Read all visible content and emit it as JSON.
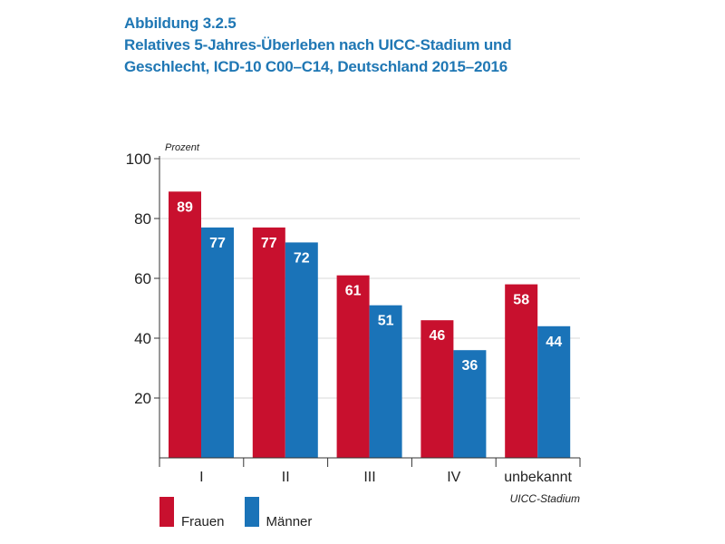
{
  "header": {
    "figure_label": "Abbildung 3.2.5",
    "title_line1": "Relatives 5-Jahres-Überleben nach UICC-Stadium und",
    "title_line2": "Geschlecht, ICD-10 C00–C14, Deutschland 2015–2016"
  },
  "colors": {
    "frauen": "#c8102e",
    "maenner": "#1a73b8",
    "title": "#1f77b4"
  },
  "chart_data": {
    "type": "bar",
    "ylabel": "Prozent",
    "xlabel": "UICC-Stadium",
    "ylim": [
      0,
      100
    ],
    "yticks": [
      20,
      40,
      60,
      80,
      100
    ],
    "grid": true,
    "legend_position": "bottom-left",
    "categories": [
      "I",
      "II",
      "III",
      "IV",
      "unbekannt"
    ],
    "series": [
      {
        "name": "Frauen",
        "values": [
          89,
          77,
          61,
          46,
          58
        ]
      },
      {
        "name": "Männer",
        "values": [
          77,
          72,
          51,
          36,
          44
        ]
      }
    ]
  }
}
